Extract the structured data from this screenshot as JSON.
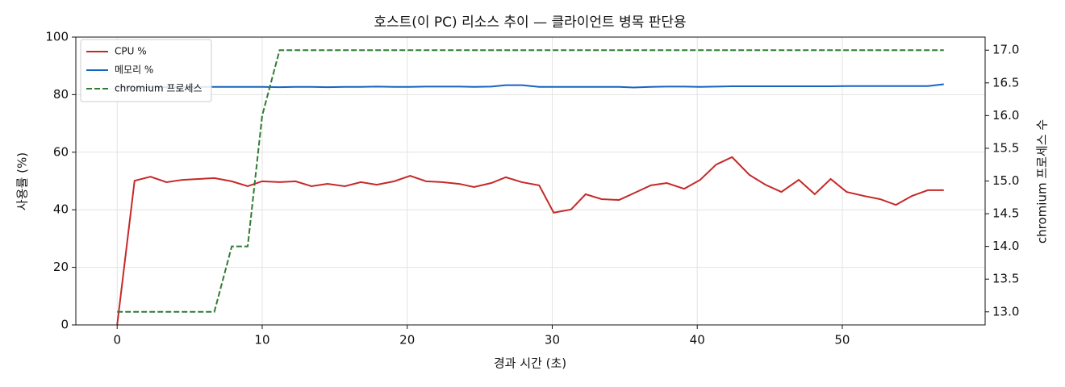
{
  "chart_data": {
    "type": "line",
    "title": "호스트(이 PC) 리소스 추이 — 클라이언트 병목 판단용",
    "xlabel": "경과 시간 (초)",
    "ylabel": "사용률 (%)",
    "y2label": "chromium 프로세스 수",
    "x": [
      0.0,
      1.2,
      2.3,
      3.4,
      4.5,
      5.6,
      6.7,
      7.9,
      9.0,
      10.0,
      11.2,
      12.3,
      13.4,
      14.5,
      15.7,
      16.8,
      17.9,
      19.1,
      20.2,
      21.3,
      22.4,
      23.6,
      24.6,
      25.8,
      26.8,
      27.9,
      29.1,
      30.1,
      31.3,
      32.3,
      33.4,
      34.6,
      35.6,
      36.8,
      37.9,
      39.1,
      40.2,
      41.3,
      42.4,
      43.6,
      44.7,
      45.8,
      47.0,
      48.1,
      49.2,
      50.3,
      51.5,
      52.6,
      53.7,
      54.8,
      55.9,
      57.0
    ],
    "series": [
      {
        "name": "CPU %",
        "color": "#c62828",
        "axis": "y",
        "values": [
          0,
          50.1,
          51.5,
          49.6,
          50.4,
          50.7,
          51.0,
          49.9,
          48.2,
          49.9,
          49.6,
          49.9,
          48.2,
          49.0,
          48.2,
          49.6,
          48.7,
          49.9,
          51.8,
          49.9,
          49.6,
          49.0,
          47.9,
          49.3,
          51.3,
          49.6,
          48.5,
          39.0,
          40.1,
          45.4,
          43.7,
          43.4,
          45.7,
          48.5,
          49.3,
          47.3,
          50.4,
          55.7,
          58.3,
          52.1,
          48.7,
          46.2,
          50.4,
          45.4,
          50.7,
          46.2,
          44.8,
          43.7,
          41.7,
          44.8,
          46.8,
          46.8
        ]
      },
      {
        "name": "메모리 %",
        "color": "#1565c0",
        "axis": "y",
        "values": [
          82.5,
          82.5,
          82.6,
          82.6,
          82.6,
          82.7,
          82.7,
          82.7,
          82.7,
          82.7,
          82.6,
          82.7,
          82.7,
          82.6,
          82.7,
          82.7,
          82.8,
          82.7,
          82.7,
          82.8,
          82.8,
          82.8,
          82.7,
          82.8,
          83.3,
          83.3,
          82.7,
          82.7,
          82.7,
          82.7,
          82.7,
          82.7,
          82.5,
          82.7,
          82.8,
          82.8,
          82.7,
          82.8,
          82.9,
          82.9,
          82.9,
          82.9,
          82.9,
          82.9,
          82.9,
          83.0,
          83.0,
          83.0,
          83.0,
          83.0,
          83.0,
          83.6
        ]
      },
      {
        "name": "chromium 프로세스",
        "color": "#2e7d32",
        "axis": "y2",
        "dashed": true,
        "values": [
          13,
          13,
          13,
          13,
          13,
          13,
          13,
          14,
          14,
          16,
          17,
          17,
          17,
          17,
          17,
          17,
          17,
          17,
          17,
          17,
          17,
          17,
          17,
          17,
          17,
          17,
          17,
          17,
          17,
          17,
          17,
          17,
          17,
          17,
          17,
          17,
          17,
          17,
          17,
          17,
          17,
          17,
          17,
          17,
          17,
          17,
          17,
          17,
          17,
          17,
          17,
          17
        ]
      }
    ],
    "xlim": [
      -2.85,
      59.85
    ],
    "xticks": [
      0,
      10,
      20,
      30,
      40,
      50
    ],
    "ylim": [
      0,
      100
    ],
    "yticks": [
      0,
      20,
      40,
      60,
      80,
      100
    ],
    "y2lim": [
      12.8,
      17.2
    ],
    "y2ticks": [
      {
        "value": 13,
        "label": "13.0"
      },
      13.5,
      {
        "value": 14,
        "label": "14.0"
      },
      14.5,
      {
        "value": 15,
        "label": "15.0"
      },
      15.5,
      {
        "value": 16,
        "label": "16.0"
      },
      16.5,
      {
        "value": 17,
        "label": "17.0"
      }
    ],
    "grid": true,
    "legend": "upper left"
  }
}
